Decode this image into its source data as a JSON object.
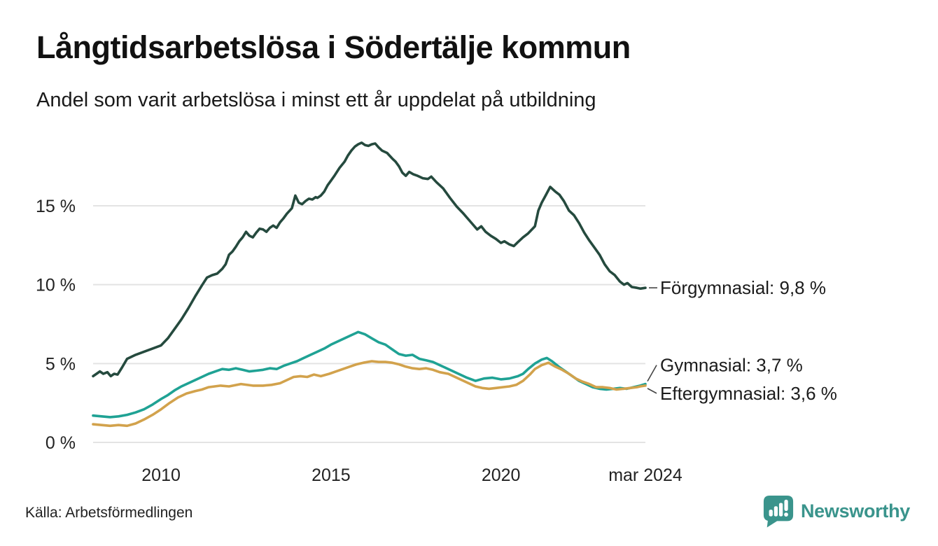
{
  "header": {
    "title": "Långtidsarbetslösa i Södertälje kommun",
    "subtitle": "Andel som varit arbetslösa i minst ett år uppdelat på utbildning"
  },
  "footer": {
    "source": "Källa: Arbetsförmedlingen",
    "brand": "Newsworthy"
  },
  "colors": {
    "forgymnasial": "#254A3E",
    "gymnasial": "#1FA294",
    "eftergymnasial": "#D2A24C",
    "grid": "#E3E3E3",
    "text": "#222222",
    "annotation_line": "#444444",
    "brand_teal": "#3A948C"
  },
  "chart_data": {
    "type": "line",
    "title": "Långtidsarbetslösa i Södertälje kommun",
    "subtitle": "Andel som varit arbetslösa i minst ett år uppdelat på utbildning",
    "xlabel": "",
    "ylabel": "",
    "x_unit": "decimal_year",
    "xlim": [
      2008.0,
      2024.25
    ],
    "ylim": [
      0,
      19.8
    ],
    "grid": "horizontal",
    "legend_position": "end-of-line-labels",
    "yticks": [
      {
        "v": 0,
        "label": "0 %"
      },
      {
        "v": 5,
        "label": "5 %"
      },
      {
        "v": 10,
        "label": "10 %"
      },
      {
        "v": 15,
        "label": "15 %"
      }
    ],
    "xticks": [
      {
        "v": 2010,
        "label": "2010"
      },
      {
        "v": 2015,
        "label": "2015"
      },
      {
        "v": 2020,
        "label": "2020"
      },
      {
        "v": 2024.25,
        "label": "mar 2024"
      }
    ],
    "series": [
      {
        "id": "forgymnasial",
        "name": "Förgymnasial",
        "color": "#254A3E",
        "last_value_text": "9,8 %",
        "x": [
          2008.0,
          2008.1,
          2008.2,
          2008.3,
          2008.42,
          2008.52,
          2008.62,
          2008.72,
          2008.85,
          2009.0,
          2009.25,
          2009.5,
          2009.75,
          2010.0,
          2010.2,
          2010.4,
          2010.6,
          2010.8,
          2011.0,
          2011.2,
          2011.35,
          2011.5,
          2011.65,
          2011.8,
          2011.9,
          2012.0,
          2012.1,
          2012.2,
          2012.3,
          2012.4,
          2012.5,
          2012.6,
          2012.7,
          2012.8,
          2012.9,
          2013.0,
          2013.1,
          2013.2,
          2013.3,
          2013.4,
          2013.5,
          2013.6,
          2013.7,
          2013.85,
          2013.95,
          2014.05,
          2014.15,
          2014.25,
          2014.35,
          2014.45,
          2014.55,
          2014.6,
          2014.7,
          2014.8,
          2014.9,
          2015.0,
          2015.1,
          2015.25,
          2015.4,
          2015.5,
          2015.6,
          2015.7,
          2015.8,
          2015.9,
          2016.0,
          2016.1,
          2016.2,
          2016.3,
          2016.4,
          2016.5,
          2016.65,
          2016.8,
          2016.9,
          2017.0,
          2017.1,
          2017.2,
          2017.3,
          2017.42,
          2017.55,
          2017.7,
          2017.85,
          2017.95,
          2018.1,
          2018.3,
          2018.5,
          2018.7,
          2018.9,
          2019.1,
          2019.3,
          2019.42,
          2019.55,
          2019.7,
          2019.85,
          2020.0,
          2020.1,
          2020.25,
          2020.38,
          2020.5,
          2020.65,
          2020.8,
          2021.0,
          2021.1,
          2021.2,
          2021.3,
          2021.45,
          2021.6,
          2021.72,
          2021.85,
          2022.0,
          2022.15,
          2022.3,
          2022.45,
          2022.6,
          2022.75,
          2022.9,
          2023.05,
          2023.2,
          2023.35,
          2023.5,
          2023.62,
          2023.72,
          2023.85,
          2024.0,
          2024.1,
          2024.25
        ],
        "values": [
          4.2,
          4.35,
          4.5,
          4.35,
          4.45,
          4.2,
          4.35,
          4.3,
          4.75,
          5.3,
          5.55,
          5.75,
          5.95,
          6.15,
          6.6,
          7.2,
          7.8,
          8.5,
          9.25,
          9.95,
          10.45,
          10.6,
          10.7,
          11.0,
          11.3,
          11.9,
          12.1,
          12.4,
          12.75,
          13.0,
          13.35,
          13.1,
          13.0,
          13.3,
          13.55,
          13.5,
          13.35,
          13.6,
          13.75,
          13.6,
          13.95,
          14.2,
          14.5,
          14.85,
          15.65,
          15.2,
          15.1,
          15.3,
          15.45,
          15.4,
          15.55,
          15.5,
          15.65,
          15.9,
          16.3,
          16.6,
          16.9,
          17.4,
          17.8,
          18.2,
          18.5,
          18.75,
          18.9,
          19.0,
          18.85,
          18.8,
          18.9,
          18.95,
          18.7,
          18.5,
          18.35,
          18.0,
          17.8,
          17.5,
          17.1,
          16.9,
          17.15,
          17.0,
          16.9,
          16.75,
          16.7,
          16.85,
          16.5,
          16.1,
          15.5,
          14.95,
          14.5,
          14.0,
          13.5,
          13.7,
          13.35,
          13.1,
          12.9,
          12.65,
          12.75,
          12.55,
          12.45,
          12.7,
          13.0,
          13.25,
          13.7,
          14.7,
          15.2,
          15.6,
          16.2,
          15.9,
          15.7,
          15.3,
          14.7,
          14.4,
          13.9,
          13.3,
          12.8,
          12.35,
          11.9,
          11.3,
          10.85,
          10.6,
          10.2,
          10.0,
          10.1,
          9.85,
          9.8,
          9.75,
          9.8
        ]
      },
      {
        "id": "gymnasial",
        "name": "Gymnasial",
        "color": "#1FA294",
        "last_value_text": "3,7 %",
        "x": [
          2008.0,
          2008.25,
          2008.5,
          2008.75,
          2009.0,
          2009.25,
          2009.5,
          2009.75,
          2010.0,
          2010.2,
          2010.4,
          2010.6,
          2010.8,
          2011.0,
          2011.2,
          2011.4,
          2011.6,
          2011.8,
          2012.0,
          2012.2,
          2012.4,
          2012.6,
          2012.8,
          2013.0,
          2013.2,
          2013.4,
          2013.6,
          2013.8,
          2014.0,
          2014.2,
          2014.4,
          2014.6,
          2014.8,
          2015.0,
          2015.2,
          2015.4,
          2015.6,
          2015.8,
          2016.0,
          2016.2,
          2016.4,
          2016.6,
          2016.8,
          2017.0,
          2017.2,
          2017.4,
          2017.6,
          2017.8,
          2018.0,
          2018.2,
          2018.4,
          2018.6,
          2018.8,
          2019.0,
          2019.25,
          2019.5,
          2019.75,
          2020.0,
          2020.25,
          2020.5,
          2020.65,
          2020.8,
          2021.0,
          2021.2,
          2021.35,
          2021.5,
          2021.7,
          2021.9,
          2022.1,
          2022.3,
          2022.5,
          2022.7,
          2022.9,
          2023.1,
          2023.3,
          2023.5,
          2023.7,
          2023.9,
          2024.1,
          2024.25
        ],
        "values": [
          1.7,
          1.65,
          1.6,
          1.65,
          1.75,
          1.9,
          2.1,
          2.4,
          2.75,
          3.0,
          3.3,
          3.55,
          3.75,
          3.95,
          4.15,
          4.35,
          4.5,
          4.65,
          4.6,
          4.7,
          4.6,
          4.5,
          4.55,
          4.6,
          4.7,
          4.65,
          4.85,
          5.0,
          5.15,
          5.35,
          5.55,
          5.75,
          5.95,
          6.2,
          6.4,
          6.6,
          6.8,
          7.0,
          6.85,
          6.6,
          6.35,
          6.2,
          5.9,
          5.6,
          5.5,
          5.55,
          5.3,
          5.2,
          5.1,
          4.9,
          4.7,
          4.5,
          4.3,
          4.1,
          3.9,
          4.05,
          4.1,
          4.0,
          4.05,
          4.2,
          4.35,
          4.65,
          5.0,
          5.25,
          5.35,
          5.15,
          4.8,
          4.5,
          4.2,
          3.9,
          3.7,
          3.5,
          3.4,
          3.35,
          3.4,
          3.45,
          3.4,
          3.5,
          3.6,
          3.7
        ]
      },
      {
        "id": "eftergymnasial",
        "name": "Eftergymnasial",
        "color": "#D2A24C",
        "last_value_text": "3,6 %",
        "x": [
          2008.0,
          2008.25,
          2008.5,
          2008.75,
          2009.0,
          2009.25,
          2009.5,
          2009.75,
          2010.0,
          2010.25,
          2010.5,
          2010.75,
          2011.0,
          2011.2,
          2011.4,
          2011.75,
          2012.0,
          2012.35,
          2012.7,
          2013.0,
          2013.25,
          2013.5,
          2013.9,
          2014.1,
          2014.3,
          2014.5,
          2014.7,
          2014.95,
          2015.15,
          2015.35,
          2015.55,
          2015.75,
          2015.95,
          2016.2,
          2016.4,
          2016.6,
          2016.8,
          2017.0,
          2017.2,
          2017.4,
          2017.6,
          2017.8,
          2018.0,
          2018.2,
          2018.45,
          2018.65,
          2018.85,
          2019.05,
          2019.25,
          2019.45,
          2019.65,
          2019.85,
          2020.05,
          2020.25,
          2020.45,
          2020.65,
          2020.85,
          2021.0,
          2021.2,
          2021.4,
          2021.6,
          2021.8,
          2022.0,
          2022.2,
          2022.4,
          2022.6,
          2022.8,
          2023.0,
          2023.2,
          2023.4,
          2023.6,
          2023.8,
          2024.0,
          2024.1,
          2024.25
        ],
        "values": [
          1.15,
          1.1,
          1.05,
          1.1,
          1.05,
          1.2,
          1.45,
          1.75,
          2.1,
          2.5,
          2.85,
          3.1,
          3.25,
          3.35,
          3.5,
          3.6,
          3.55,
          3.7,
          3.6,
          3.6,
          3.65,
          3.75,
          4.15,
          4.2,
          4.15,
          4.3,
          4.2,
          4.35,
          4.5,
          4.65,
          4.8,
          4.95,
          5.05,
          5.15,
          5.1,
          5.1,
          5.05,
          4.95,
          4.8,
          4.7,
          4.65,
          4.7,
          4.6,
          4.45,
          4.35,
          4.15,
          3.95,
          3.75,
          3.55,
          3.45,
          3.4,
          3.45,
          3.5,
          3.55,
          3.65,
          3.9,
          4.3,
          4.65,
          4.9,
          5.05,
          4.8,
          4.6,
          4.35,
          4.05,
          3.85,
          3.7,
          3.5,
          3.5,
          3.45,
          3.35,
          3.4,
          3.45,
          3.5,
          3.55,
          3.6
        ]
      }
    ],
    "annotations": [
      {
        "series": 0,
        "label": "Förgymnasial: 9,8 %",
        "dy": 0
      },
      {
        "series": 1,
        "label": "Gymnasial: 3,7 %",
        "dy": -27
      },
      {
        "series": 2,
        "label": "Eftergymnasial: 3,6 %",
        "dy": 11
      }
    ]
  }
}
